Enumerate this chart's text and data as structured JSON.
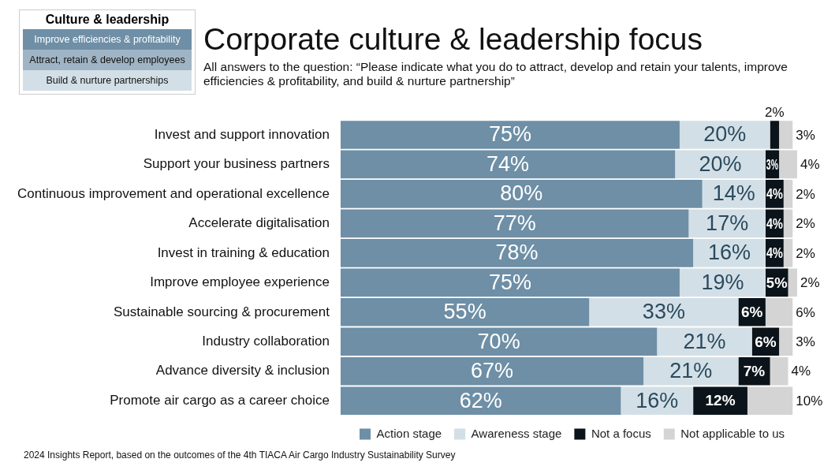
{
  "chart_data": {
    "type": "bar",
    "orientation": "horizontal",
    "stacked": true,
    "title": "Corporate culture & leadership focus",
    "subtitle": "All answers to the question: “Please indicate what you do to attract, develop and retain your talents, improve efficiencies & profitability, and build & nurture partnership”",
    "categories": [
      "Invest and support innovation",
      "Support your business partners",
      "Continuous improvement and operational excellence",
      "Accelerate digitalisation",
      "Invest in training & education",
      "Improve employee experience",
      "Sustainable sourcing & procurement",
      "Industry collaboration",
      "Advance diversity & inclusion",
      "Promote air cargo as a career choice"
    ],
    "series": [
      {
        "name": "Action stage",
        "color": "#6e8fa6",
        "values": [
          75,
          74,
          80,
          77,
          78,
          75,
          55,
          70,
          67,
          62
        ],
        "value_labels": [
          "75%",
          "74%",
          "80%",
          "77%",
          "78%",
          "75%",
          "55%",
          "70%",
          "67%",
          "62%"
        ]
      },
      {
        "name": "Awareness stage",
        "color": "#d3dfe6",
        "values": [
          20,
          20,
          14,
          17,
          16,
          19,
          33,
          21,
          21,
          16
        ],
        "value_labels": [
          "20%",
          "20%",
          "14%",
          "17%",
          "16%",
          "19%",
          "33%",
          "21%",
          "21%",
          "16%"
        ]
      },
      {
        "name": "Not a focus",
        "color": "#0b141a",
        "values": [
          2,
          3,
          4,
          4,
          4,
          5,
          6,
          6,
          7,
          12
        ],
        "value_labels": [
          "2%",
          "3%",
          "4%",
          "4%",
          "4%",
          "5%",
          "6%",
          "6%",
          "7%",
          "12%"
        ]
      },
      {
        "name": "Not applicable to us",
        "color": "#d4d4d4",
        "values": [
          3,
          4,
          2,
          2,
          2,
          2,
          6,
          3,
          4,
          10
        ],
        "value_labels": [
          "3%",
          "4%",
          "2%",
          "2%",
          "2%",
          "2%",
          "6%",
          "3%",
          "4%",
          "10%"
        ]
      }
    ],
    "legend": "bottom right",
    "grid": false,
    "annotations": [
      "Culture & leadership",
      "Improve efficiencies & profitability",
      "Attract, retain & develop employees",
      "Build & nurture partnerships",
      "2024 Insights Report, based on the outcomes of the 4th TIACA Air Cargo Industry Sustainability Survey"
    ]
  }
}
